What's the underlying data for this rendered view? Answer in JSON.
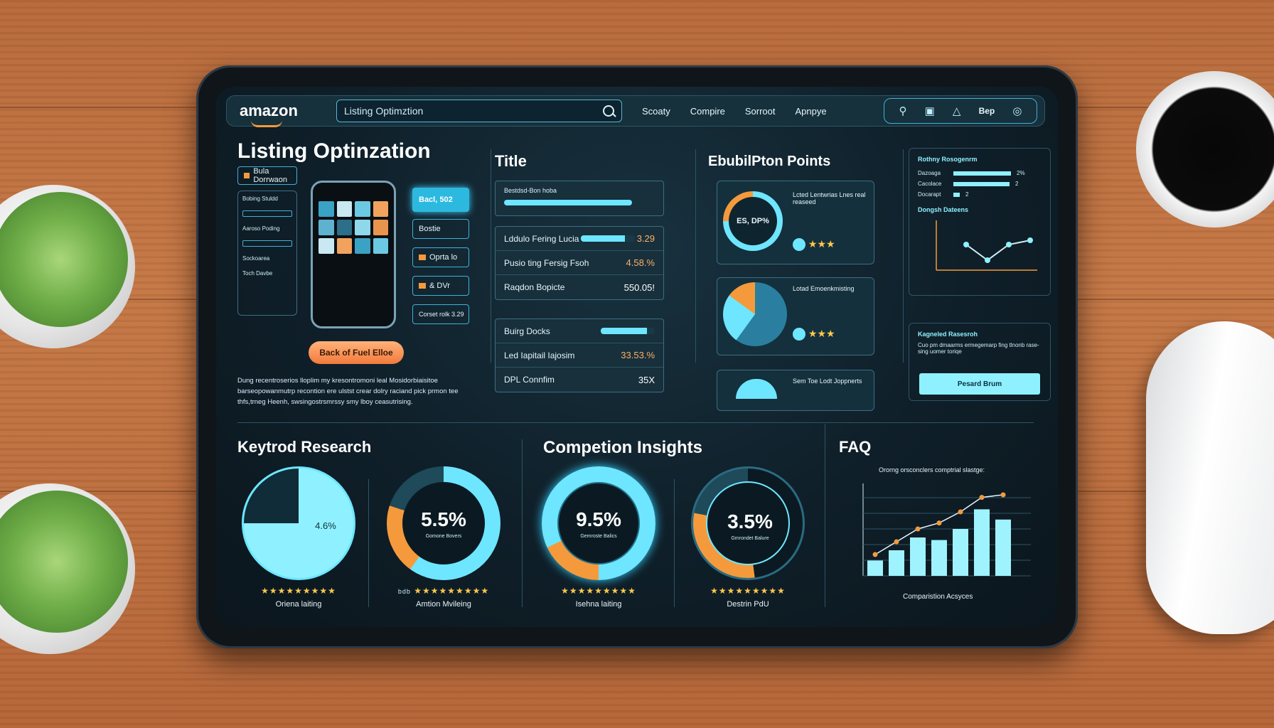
{
  "nav": {
    "logo": "amazon",
    "search_value": "Listing Optimztion",
    "links": [
      "Scoaty",
      "Compire",
      "Sorroot",
      "Apnpye"
    ],
    "tools_text": "Bep"
  },
  "listing": {
    "title": "Listing Optinzation",
    "chip_top": "Bula Dorrwaon",
    "side_lines": [
      "Bobing Stuldd",
      "Aaroso Poding",
      "Sockoarea",
      "Toch Davbe"
    ],
    "buttons": [
      "Bacl, 502",
      "Bostie",
      "Oprta lo",
      "& DVr",
      "Corset rolk 3.29"
    ],
    "cta": "Back of Fuel Elloe",
    "description": "Dung recentroserios lloplim my kresontromoni leal Mosidorbiaisitoe barseopowanmutrp recontion ere ulstst crear dolry raciand pick prmon tee thfs,trneg Heenh, swsingostrsmrssy smy lboy ceasutrising."
  },
  "title_panel": {
    "title": "Title",
    "top_box_label": "Bestdsd-Bon hoba",
    "rows_a": [
      {
        "label": "Lddulo Fering Lucia",
        "value": "3.29",
        "bar": 0.82
      },
      {
        "label": "Pusio ting Fersig Fsoh",
        "value": "4.58.%",
        "bar": null
      },
      {
        "label": "Raqdon Bopicte",
        "value": "550.05!",
        "bar": null
      }
    ],
    "rows_b": [
      {
        "label": "Buirg Docks",
        "value": "",
        "bar": 0.86
      },
      {
        "label": "Led Iapitail Iajosim",
        "value": "33.53.%",
        "bar": null
      },
      {
        "label": "DPL Connfim",
        "value": "35X",
        "bar": null
      }
    ]
  },
  "bullets": {
    "title": "EbubilPton Points",
    "card1_ring": "ES, DP%",
    "card1_text": "Lcted Lentwrias Lnes real reaseed",
    "card2_text": "Lotad Emoenkmisting",
    "card3_text": "Sem Toe Lodt Joppnerts"
  },
  "right": {
    "card1_title": "Rothny Rosogenrm",
    "rows": [
      {
        "label": "Dazoaga",
        "value": "2%",
        "fill": 0.9
      },
      {
        "label": "Cacolace",
        "value": "2",
        "fill": 0.88
      },
      {
        "label": "Docarapt",
        "value": "2",
        "fill": 0.1
      }
    ],
    "chart_title": "Dongsh Dateens",
    "card2_title": "Kagneled Rasesroh",
    "card2_text": "Cuo pm dmaarms ermegemarp fing tlnonb rase-sing uomer toriqe",
    "card2_button": "Pesard Brum"
  },
  "keyword": {
    "title": "Keytrod Research",
    "donut1_value": "4.6%",
    "donut1_caption": "Oriena laiting",
    "donut2_value": "5.5%",
    "donut2_sub": "Gomone Bovers",
    "donut2_caption": "Amtion Mvileing",
    "donut2_prefix": "bdb"
  },
  "competition": {
    "title": "Competion Insights",
    "donut3_value": "9.5%",
    "donut3_sub": "Gemroste Balics",
    "donut3_caption": "Isehna laiting",
    "donut4_value": "3.5%",
    "donut4_sub": "Gmrondet Balure",
    "donut4_caption": "Destrin PdU"
  },
  "faq": {
    "title": "FAQ",
    "chart_title": "Ororng orsconclers comptrial slastge:",
    "footer": "Comparistion Acsyces"
  },
  "stars": "★★★★★★★★★",
  "colors": {
    "accent": "#6ee6ff",
    "orange": "#f59a3c",
    "panel": "#14303c"
  }
}
